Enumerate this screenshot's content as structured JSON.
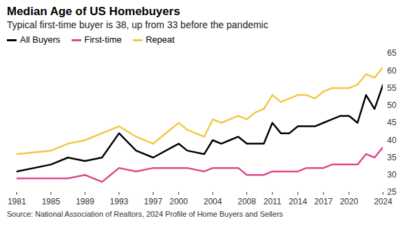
{
  "chart_data": {
    "type": "line",
    "title": "Median Age of US Homebuyers",
    "subtitle": "Typical first-time buyer is 38, up from 33 before the pandemic",
    "caption": "Source: National Association of Realtors, 2024 Profile of Home Buyers and Sellers",
    "x": [
      1981,
      1985,
      1987,
      1989,
      1991,
      1993,
      1995,
      1997,
      2000,
      2001,
      2003,
      2004,
      2005,
      2006,
      2007,
      2008,
      2009,
      2010,
      2011,
      2012,
      2013,
      2014,
      2015,
      2016,
      2017,
      2018,
      2019,
      2020,
      2021,
      2022,
      2023,
      2024
    ],
    "series": [
      {
        "name": "All Buyers",
        "color": "#000000",
        "values": [
          31,
          33,
          35,
          34,
          35,
          42,
          37,
          35,
          39,
          37,
          36,
          40,
          39,
          40,
          41,
          39,
          39,
          39,
          45,
          42,
          42,
          44,
          44,
          44,
          45,
          46,
          47,
          47,
          45,
          53,
          49,
          56
        ]
      },
      {
        "name": "First-time",
        "color": "#e0468c",
        "values": [
          29,
          29,
          29,
          30,
          28,
          32,
          31,
          32,
          32,
          32,
          31,
          32,
          32,
          32,
          32,
          30,
          30,
          30,
          31,
          31,
          31,
          31,
          32,
          32,
          32,
          33,
          33,
          33,
          33,
          36,
          35,
          38
        ]
      },
      {
        "name": "Repeat",
        "color": "#f2c744",
        "values": [
          36,
          37,
          39,
          40,
          42,
          44,
          41,
          39,
          45,
          43,
          41,
          46,
          45,
          46,
          47,
          46,
          48,
          49,
          53,
          51,
          52,
          53,
          53,
          52,
          54,
          55,
          55,
          55,
          56,
          59,
          58,
          61
        ]
      }
    ],
    "xlim": [
      1981,
      2024
    ],
    "xticks": [
      1981,
      1985,
      1989,
      1993,
      1997,
      2000,
      2004,
      2008,
      2011,
      2014,
      2017,
      2020,
      2024
    ],
    "ylim": [
      25,
      65
    ],
    "yticks": [
      25,
      30,
      35,
      40,
      45,
      50,
      55,
      60,
      65
    ],
    "grid": false
  }
}
